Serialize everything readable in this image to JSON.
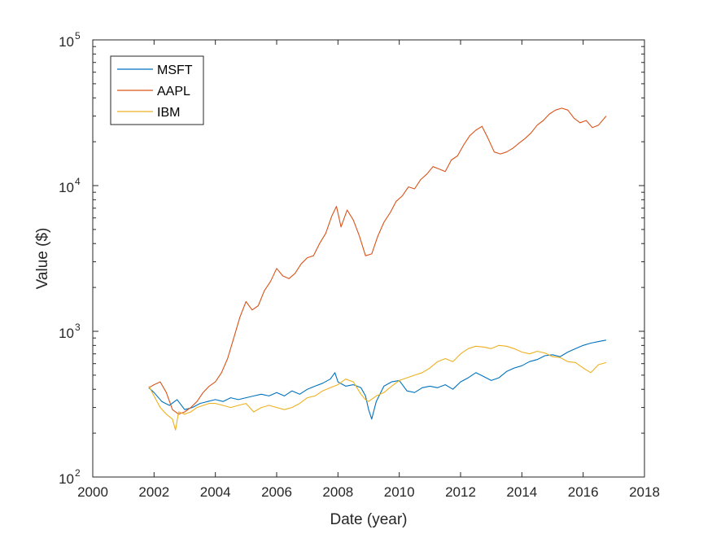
{
  "chart_data": {
    "type": "line",
    "title": "",
    "xlabel": "Date (year)",
    "ylabel": "Value ($)",
    "xlim": [
      2000,
      2018
    ],
    "ylim": [
      100,
      100000
    ],
    "yscale": "log",
    "grid": false,
    "legend_position": "top-left",
    "x_ticks": [
      {
        "value": 2000,
        "label": "2000"
      },
      {
        "value": 2002,
        "label": "2002"
      },
      {
        "value": 2004,
        "label": "2004"
      },
      {
        "value": 2006,
        "label": "2006"
      },
      {
        "value": 2008,
        "label": "2008"
      },
      {
        "value": 2010,
        "label": "2010"
      },
      {
        "value": 2012,
        "label": "2012"
      },
      {
        "value": 2014,
        "label": "2014"
      },
      {
        "value": 2016,
        "label": "2016"
      },
      {
        "value": 2018,
        "label": "2018"
      }
    ],
    "y_ticks": [
      {
        "value": 100,
        "base": "10",
        "exp": "2"
      },
      {
        "value": 1000,
        "base": "10",
        "exp": "3"
      },
      {
        "value": 10000,
        "base": "10",
        "exp": "4"
      },
      {
        "value": 100000,
        "base": "10",
        "exp": "5"
      }
    ],
    "series": [
      {
        "name": "MSFT",
        "color": "#0072BD",
        "x": [
          2001.83,
          2002.0,
          2002.25,
          2002.5,
          2002.75,
          2003.0,
          2003.25,
          2003.5,
          2003.75,
          2004.0,
          2004.25,
          2004.5,
          2004.75,
          2005.0,
          2005.25,
          2005.5,
          2005.75,
          2006.0,
          2006.25,
          2006.5,
          2006.75,
          2007.0,
          2007.25,
          2007.5,
          2007.75,
          2007.9,
          2008.0,
          2008.25,
          2008.5,
          2008.75,
          2008.9,
          2009.0,
          2009.1,
          2009.25,
          2009.5,
          2009.75,
          2010.0,
          2010.25,
          2010.5,
          2010.75,
          2011.0,
          2011.25,
          2011.5,
          2011.75,
          2012.0,
          2012.25,
          2012.5,
          2012.75,
          2013.0,
          2013.25,
          2013.5,
          2013.75,
          2014.0,
          2014.25,
          2014.5,
          2014.75,
          2015.0,
          2015.25,
          2015.5,
          2015.75,
          2016.0,
          2016.25,
          2016.5,
          2016.75
        ],
        "values": [
          410,
          380,
          330,
          310,
          340,
          290,
          300,
          320,
          330,
          340,
          330,
          350,
          340,
          350,
          360,
          370,
          360,
          380,
          360,
          390,
          370,
          400,
          420,
          440,
          470,
          520,
          450,
          420,
          430,
          410,
          360,
          290,
          250,
          330,
          420,
          450,
          460,
          390,
          380,
          410,
          420,
          410,
          430,
          400,
          450,
          480,
          520,
          490,
          460,
          480,
          530,
          560,
          580,
          620,
          640,
          680,
          690,
          670,
          720,
          760,
          800,
          830,
          850,
          870
        ]
      },
      {
        "name": "AAPL",
        "color": "#D95319",
        "x": [
          2001.83,
          2002.0,
          2002.2,
          2002.4,
          2002.6,
          2002.8,
          2003.0,
          2003.2,
          2003.4,
          2003.6,
          2003.8,
          2004.0,
          2004.2,
          2004.4,
          2004.6,
          2004.8,
          2005.0,
          2005.2,
          2005.4,
          2005.6,
          2005.8,
          2006.0,
          2006.2,
          2006.4,
          2006.6,
          2006.8,
          2007.0,
          2007.2,
          2007.4,
          2007.6,
          2007.8,
          2007.95,
          2008.1,
          2008.3,
          2008.5,
          2008.7,
          2008.9,
          2009.1,
          2009.3,
          2009.5,
          2009.7,
          2009.9,
          2010.1,
          2010.3,
          2010.5,
          2010.7,
          2010.9,
          2011.1,
          2011.3,
          2011.5,
          2011.7,
          2011.9,
          2012.1,
          2012.3,
          2012.5,
          2012.7,
          2012.9,
          2013.1,
          2013.3,
          2013.5,
          2013.7,
          2013.9,
          2014.1,
          2014.3,
          2014.5,
          2014.7,
          2014.9,
          2015.1,
          2015.3,
          2015.5,
          2015.7,
          2015.9,
          2016.1,
          2016.3,
          2016.5,
          2016.75
        ],
        "values": [
          410,
          430,
          450,
          380,
          290,
          270,
          280,
          300,
          330,
          380,
          420,
          450,
          520,
          650,
          900,
          1250,
          1600,
          1400,
          1500,
          1900,
          2200,
          2700,
          2400,
          2300,
          2500,
          2900,
          3200,
          3300,
          4000,
          4700,
          6200,
          7200,
          5200,
          6800,
          5800,
          4500,
          3300,
          3400,
          4500,
          5600,
          6500,
          7800,
          8500,
          9800,
          9500,
          11000,
          12000,
          13500,
          13000,
          12500,
          15000,
          16000,
          19000,
          22000,
          24000,
          25500,
          21000,
          17000,
          16500,
          17000,
          18000,
          19500,
          21000,
          23000,
          26000,
          28000,
          31000,
          33000,
          34000,
          33000,
          29000,
          27000,
          28000,
          25000,
          26000,
          30000
        ]
      },
      {
        "name": "IBM",
        "color": "#EDB120",
        "x": [
          2001.83,
          2002.0,
          2002.2,
          2002.4,
          2002.6,
          2002.7,
          2002.8,
          2003.0,
          2003.2,
          2003.4,
          2003.6,
          2003.8,
          2004.0,
          2004.25,
          2004.5,
          2004.75,
          2005.0,
          2005.25,
          2005.5,
          2005.75,
          2006.0,
          2006.25,
          2006.5,
          2006.75,
          2007.0,
          2007.25,
          2007.5,
          2007.75,
          2008.0,
          2008.25,
          2008.5,
          2008.75,
          2008.9,
          2009.0,
          2009.25,
          2009.5,
          2009.75,
          2010.0,
          2010.25,
          2010.5,
          2010.75,
          2011.0,
          2011.25,
          2011.5,
          2011.75,
          2012.0,
          2012.25,
          2012.5,
          2012.75,
          2013.0,
          2013.25,
          2013.5,
          2013.75,
          2014.0,
          2014.25,
          2014.5,
          2014.75,
          2015.0,
          2015.25,
          2015.5,
          2015.75,
          2016.0,
          2016.25,
          2016.5,
          2016.75
        ],
        "values": [
          420,
          360,
          300,
          270,
          250,
          210,
          280,
          270,
          280,
          300,
          310,
          320,
          320,
          310,
          300,
          310,
          320,
          280,
          300,
          310,
          300,
          290,
          300,
          320,
          350,
          360,
          390,
          410,
          430,
          470,
          450,
          370,
          340,
          330,
          360,
          380,
          420,
          460,
          480,
          500,
          520,
          560,
          620,
          650,
          620,
          700,
          760,
          790,
          780,
          760,
          800,
          790,
          760,
          720,
          700,
          730,
          710,
          670,
          660,
          620,
          610,
          560,
          520,
          590,
          610
        ]
      }
    ]
  }
}
